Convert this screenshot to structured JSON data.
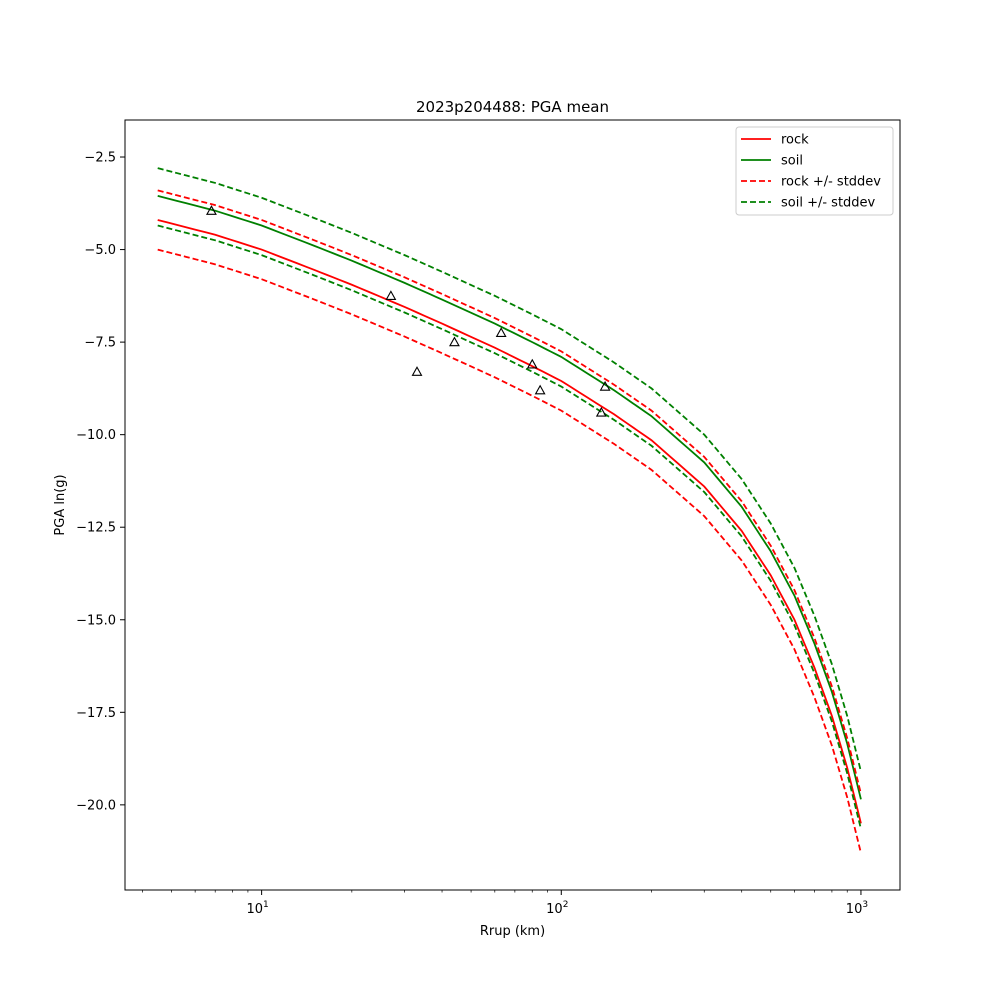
{
  "chart_data": {
    "type": "line",
    "title": "2023p204488: PGA mean",
    "xlabel": "Rrup (km)",
    "ylabel": "PGA ln(g)",
    "xscale": "log",
    "xlim": [
      3.5,
      1350
    ],
    "ylim": [
      -22.3,
      -1.5
    ],
    "grid": false,
    "legend_position": "upper-right",
    "x_ticks": [
      {
        "value": 10,
        "base": "10",
        "exp": "1"
      },
      {
        "value": 100,
        "base": "10",
        "exp": "2"
      },
      {
        "value": 1000,
        "base": "10",
        "exp": "3"
      }
    ],
    "y_ticks": [
      {
        "value": -2.5,
        "label": "−2.5"
      },
      {
        "value": -5.0,
        "label": "−5.0"
      },
      {
        "value": -7.5,
        "label": "−7.5"
      },
      {
        "value": -10.0,
        "label": "−10.0"
      },
      {
        "value": -12.5,
        "label": "−12.5"
      },
      {
        "value": -15.0,
        "label": "−15.0"
      },
      {
        "value": -17.5,
        "label": "−17.5"
      },
      {
        "value": -20.0,
        "label": "−20.0"
      }
    ],
    "x": [
      4.5,
      7,
      10,
      15,
      20,
      30,
      40,
      60,
      80,
      100,
      150,
      200,
      300,
      400,
      500,
      600,
      700,
      800,
      900,
      1000
    ],
    "series": [
      {
        "name": "rock",
        "color": "#ff0000",
        "style": "solid",
        "values": [
          -4.2,
          -4.6,
          -5.0,
          -5.55,
          -5.95,
          -6.55,
          -7.0,
          -7.65,
          -8.15,
          -8.55,
          -9.45,
          -10.15,
          -11.4,
          -12.6,
          -13.8,
          -15.0,
          -16.3,
          -17.6,
          -19.0,
          -20.5
        ]
      },
      {
        "name": "soil",
        "color": "#008000",
        "style": "solid",
        "values": [
          -3.55,
          -3.95,
          -4.35,
          -4.9,
          -5.3,
          -5.9,
          -6.35,
          -7.0,
          -7.5,
          -7.9,
          -8.8,
          -9.5,
          -10.75,
          -11.95,
          -13.15,
          -14.35,
          -15.65,
          -16.95,
          -18.35,
          -19.85
        ]
      },
      {
        "name": "rock +/- stddev",
        "color": "#ff0000",
        "style": "dashed",
        "values": [
          -3.4,
          -3.8,
          -4.2,
          -4.75,
          -5.15,
          -5.75,
          -6.2,
          -6.85,
          -7.35,
          -7.75,
          -8.65,
          -9.35,
          -10.6,
          -11.8,
          -13.0,
          -14.2,
          -15.5,
          -16.8,
          -18.2,
          -19.7
        ]
      },
      {
        "name": "",
        "color": "#ff0000",
        "style": "dashed",
        "values": [
          -5.0,
          -5.4,
          -5.8,
          -6.35,
          -6.75,
          -7.35,
          -7.8,
          -8.45,
          -8.95,
          -9.35,
          -10.25,
          -10.95,
          -12.2,
          -13.4,
          -14.6,
          -15.8,
          -17.1,
          -18.4,
          -19.8,
          -21.3
        ]
      },
      {
        "name": "soil +/- stddev",
        "color": "#008000",
        "style": "dashed",
        "values": [
          -2.8,
          -3.2,
          -3.6,
          -4.15,
          -4.55,
          -5.15,
          -5.6,
          -6.25,
          -6.75,
          -7.15,
          -8.05,
          -8.75,
          -10.0,
          -11.2,
          -12.4,
          -13.6,
          -14.9,
          -16.2,
          -17.6,
          -19.1
        ]
      },
      {
        "name": "",
        "color": "#008000",
        "style": "dashed",
        "values": [
          -4.35,
          -4.75,
          -5.15,
          -5.7,
          -6.1,
          -6.7,
          -7.15,
          -7.8,
          -8.3,
          -8.7,
          -9.6,
          -10.3,
          -11.55,
          -12.75,
          -13.95,
          -15.15,
          -16.45,
          -17.75,
          -19.15,
          -20.65
        ]
      }
    ],
    "observations": [
      {
        "x": 6.8,
        "y": -3.95
      },
      {
        "x": 27,
        "y": -6.25
      },
      {
        "x": 33,
        "y": -8.3
      },
      {
        "x": 44,
        "y": -7.5
      },
      {
        "x": 63,
        "y": -7.25
      },
      {
        "x": 80,
        "y": -8.1
      },
      {
        "x": 85,
        "y": -8.8
      },
      {
        "x": 136,
        "y": -9.4
      },
      {
        "x": 140,
        "y": -8.7
      }
    ]
  }
}
